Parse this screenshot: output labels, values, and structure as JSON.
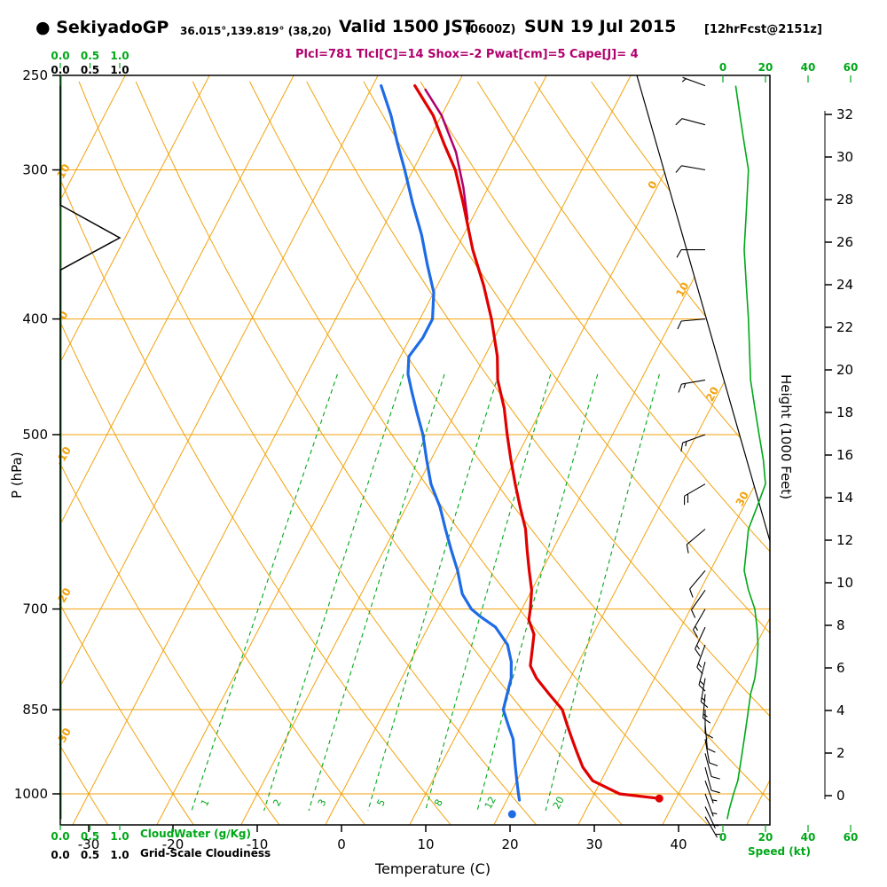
{
  "header": {
    "bullet": "●",
    "station": "SekiyadoGP",
    "coords": "36.015°,139.819° (38,20)",
    "valid": "Valid 1500 JST",
    "valid_z": "(0600Z)",
    "date": "SUN 19 Jul 2015",
    "fcst_tag": "[12hrFcst@2151z]",
    "params": "Plcl=781 Tlcl[C]=14 Shox=-2 Pwat[cm]=5 Cape[J]= 4"
  },
  "axes": {
    "pressure": {
      "label": "P (hPa)",
      "ticks": [
        250,
        300,
        400,
        500,
        700,
        850,
        1000
      ]
    },
    "temperature": {
      "label": "Temperature (C)",
      "ticks": [
        -30,
        -20,
        -10,
        0,
        10,
        20,
        30,
        40
      ]
    },
    "height": {
      "label": "Height (1000 Feet)",
      "ticks": [
        0,
        2,
        4,
        6,
        8,
        10,
        12,
        14,
        16,
        18,
        20,
        22,
        24,
        26,
        28,
        30,
        32
      ]
    },
    "speed": {
      "label": "Speed (kt)",
      "ticks": [
        0,
        20,
        40,
        60
      ]
    },
    "cloudwater": {
      "label": "CloudWater (g/Kg)",
      "ticks": [
        "0.0",
        "0.5",
        "1.0"
      ]
    },
    "cloudiness": {
      "label": "Grid-Scale Cloudiness",
      "ticks": [
        "0.0",
        "0.5",
        "1.0"
      ]
    },
    "theta_edge_labels": [
      10,
      0,
      -10,
      -20,
      -30
    ],
    "isotherm_diag_labels": [
      0,
      10,
      20,
      30
    ],
    "mixing_ratio_labels": [
      1,
      2,
      3,
      5,
      8,
      12,
      20
    ]
  },
  "colors": {
    "grid_orange": "#f2a20d",
    "green": "#00a818",
    "red": "#e00000",
    "blue": "#1e6be6",
    "magenta": "#b0006c",
    "black": "#000000"
  },
  "chart_data": {
    "type": "line",
    "subtype": "skew-t-log-p-sounding",
    "title": "SekiyadoGP forecast sounding valid 1500 JST (0600Z) SUN 19 Jul 2015",
    "x_axis": {
      "label": "Temperature (C)",
      "ticks": [
        -30,
        -20,
        -10,
        0,
        10,
        20,
        30,
        40
      ],
      "note": "isotherms skewed up-right"
    },
    "y_axis": {
      "label": "P (hPa)",
      "scale": "log",
      "ticks": [
        250,
        300,
        400,
        500,
        700,
        850,
        1000
      ],
      "range": [
        1060,
        250
      ]
    },
    "secondary_y_axis": {
      "label": "Height (1000 Feet)",
      "ticks": [
        0,
        2,
        4,
        6,
        8,
        10,
        12,
        14,
        16,
        18,
        20,
        22,
        24,
        26,
        28,
        30,
        32
      ]
    },
    "wind_axis": {
      "label": "Speed (kt)",
      "ticks": [
        0,
        20,
        40,
        60
      ]
    },
    "parameters": {
      "Plcl_hPa": 781,
      "Tlcl_C": 14,
      "Shox": -2,
      "Pwat_cm": 5,
      "Cape_J": 4
    },
    "grid": {
      "isobars_hPa": [
        300,
        400,
        500,
        700,
        850,
        1000
      ],
      "isotherms_C": {
        "start": -80,
        "end": 50,
        "step": 10
      },
      "dry_adiabats_C": {
        "start": -60,
        "end": 120,
        "step": 10
      },
      "mixing_ratio_gkg": [
        1,
        2,
        3,
        5,
        8,
        12,
        20
      ]
    },
    "series": [
      {
        "name": "temperature",
        "color": "#e00000",
        "units": [
          "hPa",
          "C"
        ],
        "points": [
          [
            255,
            -35
          ],
          [
            270,
            -31
          ],
          [
            285,
            -28
          ],
          [
            300,
            -25
          ],
          [
            320,
            -22
          ],
          [
            350,
            -18
          ],
          [
            375,
            -14.5
          ],
          [
            400,
            -11.5
          ],
          [
            430,
            -8.5
          ],
          [
            450,
            -7
          ],
          [
            475,
            -4.5
          ],
          [
            500,
            -2.5
          ],
          [
            525,
            -0.5
          ],
          [
            550,
            1.5
          ],
          [
            575,
            3.5
          ],
          [
            600,
            5.5
          ],
          [
            625,
            7
          ],
          [
            650,
            8.5
          ],
          [
            675,
            10
          ],
          [
            700,
            11
          ],
          [
            715,
            11.5
          ],
          [
            735,
            13
          ],
          [
            750,
            13.5
          ],
          [
            781,
            14.5
          ],
          [
            800,
            16
          ],
          [
            825,
            18.5
          ],
          [
            850,
            21
          ],
          [
            875,
            22.5
          ],
          [
            900,
            24
          ],
          [
            925,
            25.5
          ],
          [
            950,
            27
          ],
          [
            975,
            29
          ],
          [
            1000,
            33
          ],
          [
            1009,
            38
          ]
        ]
      },
      {
        "name": "dewpoint",
        "color": "#1e6be6",
        "units": [
          "hPa",
          "C"
        ],
        "points": [
          [
            255,
            -39
          ],
          [
            270,
            -36
          ],
          [
            285,
            -33.5
          ],
          [
            300,
            -31
          ],
          [
            320,
            -28
          ],
          [
            340,
            -25
          ],
          [
            360,
            -22.5
          ],
          [
            380,
            -20
          ],
          [
            400,
            -18.5
          ],
          [
            415,
            -18.5
          ],
          [
            430,
            -19
          ],
          [
            445,
            -18
          ],
          [
            460,
            -16.5
          ],
          [
            480,
            -14.5
          ],
          [
            500,
            -12.5
          ],
          [
            525,
            -10.5
          ],
          [
            550,
            -8.5
          ],
          [
            575,
            -6
          ],
          [
            600,
            -4
          ],
          [
            625,
            -2
          ],
          [
            650,
            0
          ],
          [
            665,
            1
          ],
          [
            680,
            2
          ],
          [
            700,
            4
          ],
          [
            710,
            5.5
          ],
          [
            725,
            8
          ],
          [
            750,
            10.5
          ],
          [
            775,
            12
          ],
          [
            800,
            13
          ],
          [
            825,
            13.5
          ],
          [
            850,
            14
          ],
          [
            875,
            15.5
          ],
          [
            900,
            17
          ],
          [
            925,
            18
          ],
          [
            950,
            19
          ],
          [
            975,
            20
          ],
          [
            1000,
            21
          ],
          [
            1012,
            21.5
          ]
        ]
      },
      {
        "name": "parcel",
        "color": "#b0006c",
        "units": [
          "hPa",
          "C"
        ],
        "points": [
          [
            330,
            -20.5
          ],
          [
            310,
            -23
          ],
          [
            290,
            -26
          ],
          [
            270,
            -30
          ],
          [
            257,
            -33.5
          ]
        ]
      },
      {
        "name": "surface_temperature_dot",
        "color": "#e00000",
        "points": [
          [
            1009,
            38
          ]
        ]
      },
      {
        "name": "surface_dewpoint_dot",
        "color": "#1e6be6",
        "points": [
          [
            1040,
            21.5
          ]
        ]
      },
      {
        "name": "wind_barbs",
        "units": [
          "hPa",
          "deg",
          "kt"
        ],
        "points": [
          [
            1045,
            150,
            3
          ],
          [
            1025,
            155,
            5
          ],
          [
            1000,
            160,
            5
          ],
          [
            975,
            160,
            7
          ],
          [
            950,
            165,
            8
          ],
          [
            925,
            165,
            9
          ],
          [
            900,
            170,
            10
          ],
          [
            875,
            175,
            11
          ],
          [
            850,
            180,
            12
          ],
          [
            825,
            185,
            13
          ],
          [
            800,
            190,
            15
          ],
          [
            775,
            195,
            16
          ],
          [
            750,
            200,
            16
          ],
          [
            725,
            205,
            16
          ],
          [
            700,
            210,
            15
          ],
          [
            675,
            215,
            12
          ],
          [
            650,
            220,
            10
          ],
          [
            600,
            230,
            12
          ],
          [
            550,
            240,
            20
          ],
          [
            500,
            250,
            17
          ],
          [
            450,
            260,
            13
          ],
          [
            400,
            265,
            12
          ],
          [
            350,
            270,
            10
          ],
          [
            300,
            280,
            12
          ],
          [
            275,
            285,
            8
          ],
          [
            255,
            290,
            6
          ]
        ]
      },
      {
        "name": "wind_speed_profile",
        "color": "#00a818",
        "units": [
          "hPa",
          "kt"
        ],
        "points": [
          [
            1050,
            2
          ],
          [
            1030,
            3
          ],
          [
            1000,
            5
          ],
          [
            975,
            7
          ],
          [
            950,
            8
          ],
          [
            925,
            9
          ],
          [
            900,
            10
          ],
          [
            875,
            11
          ],
          [
            850,
            12
          ],
          [
            825,
            13
          ],
          [
            800,
            15
          ],
          [
            775,
            16
          ],
          [
            750,
            16.5
          ],
          [
            725,
            16
          ],
          [
            700,
            15
          ],
          [
            675,
            12
          ],
          [
            650,
            10
          ],
          [
            625,
            11
          ],
          [
            600,
            12
          ],
          [
            575,
            16
          ],
          [
            550,
            20
          ],
          [
            525,
            19
          ],
          [
            500,
            17
          ],
          [
            475,
            15
          ],
          [
            450,
            13
          ],
          [
            425,
            12.5
          ],
          [
            400,
            12
          ],
          [
            375,
            11
          ],
          [
            350,
            10
          ],
          [
            325,
            11
          ],
          [
            300,
            12
          ],
          [
            285,
            10
          ],
          [
            270,
            8
          ],
          [
            255,
            6
          ]
        ]
      },
      {
        "name": "grid_scale_cloudiness",
        "color": "#000000",
        "units": [
          "hPa",
          "fraction"
        ],
        "points": [
          [
            255,
            0
          ],
          [
            321,
            0
          ],
          [
            342,
            1.0
          ],
          [
            364,
            0
          ],
          [
            1050,
            0
          ]
        ]
      },
      {
        "name": "cloud_water",
        "color": "#00a818",
        "units": [
          "hPa",
          "g/kg"
        ],
        "points": [
          [
            1050,
            0
          ],
          [
            250,
            0
          ]
        ]
      }
    ]
  }
}
